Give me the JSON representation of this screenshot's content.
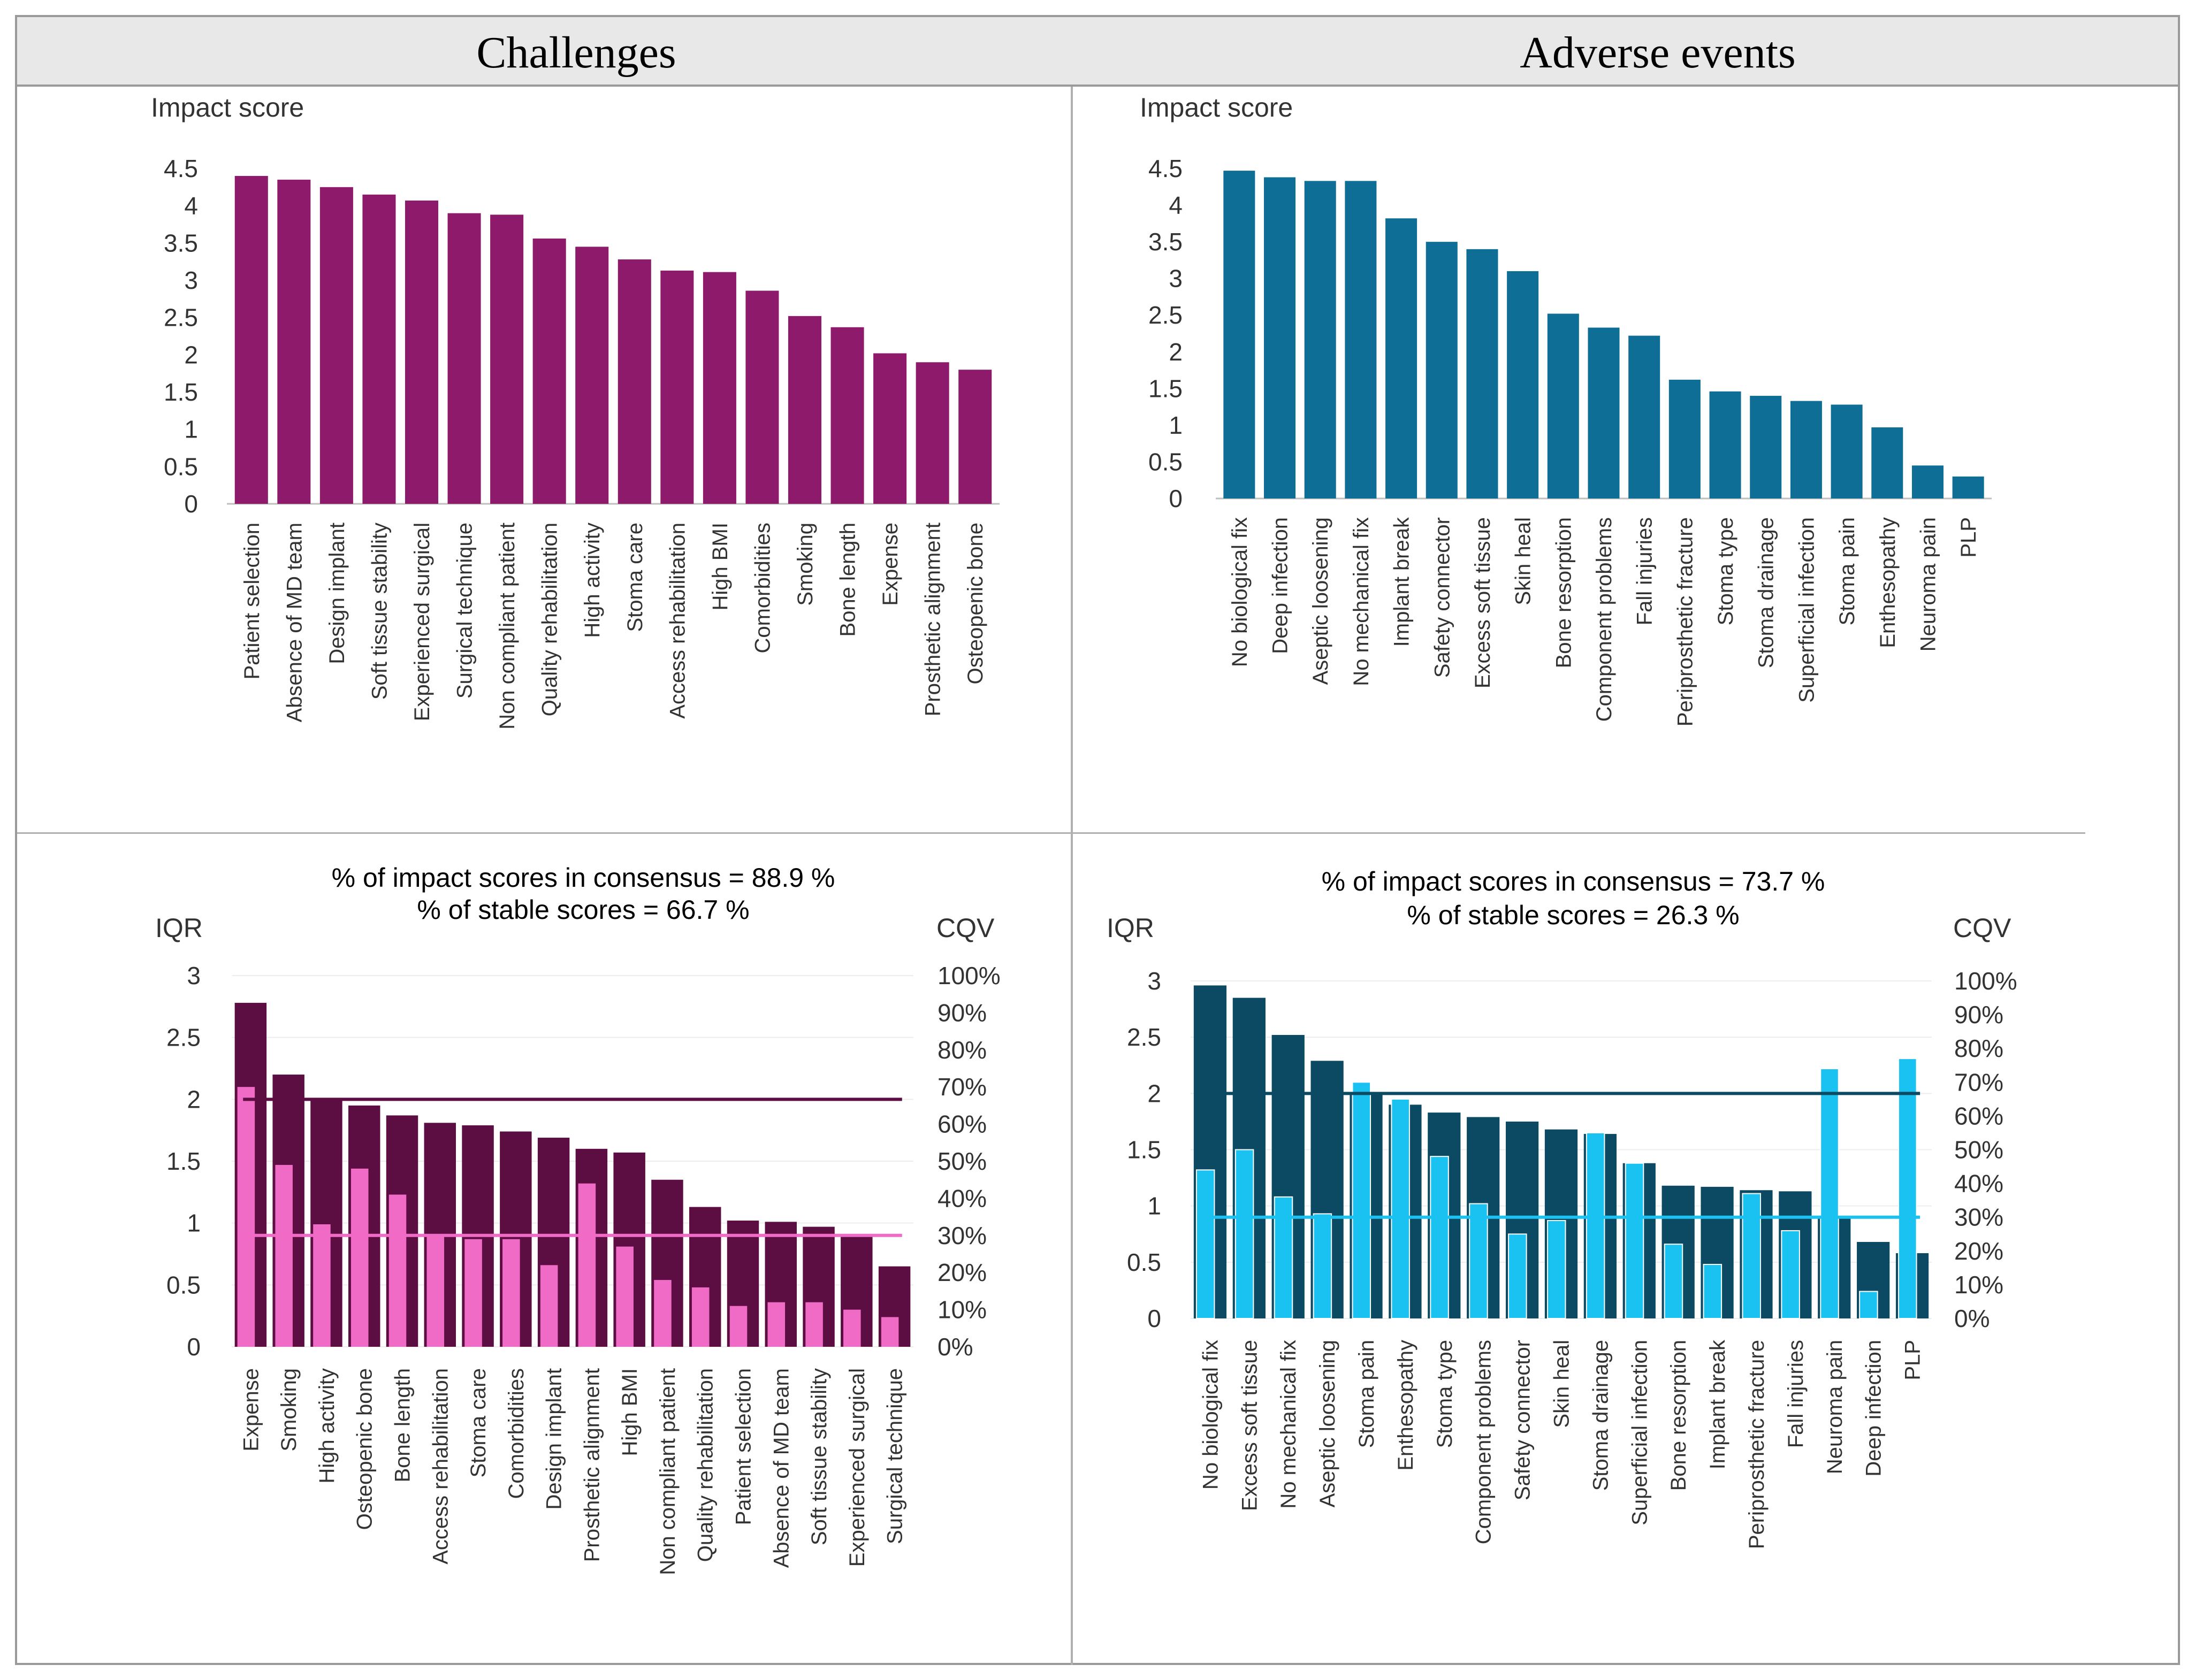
{
  "headers": {
    "left": "Challenges",
    "right": "Adverse events"
  },
  "chart_data": [
    {
      "id": "challenges_impact",
      "type": "bar",
      "ylabel": "Impact score",
      "ylim": [
        0,
        4.5
      ],
      "yticks": [
        "0",
        "0.5",
        "1",
        "1.5",
        "2",
        "2.5",
        "3",
        "3.5",
        "4",
        "4.5"
      ],
      "bar_color": "#8e1a6b",
      "categories": [
        "Patient selection",
        "Absence of MD team",
        "Design implant",
        "Soft tissue stability",
        "Experienced surgical",
        "Surgical technique",
        "Non compliant patient",
        "Quality rehabilitation",
        "High activity",
        "Stoma care",
        "Access rehabilitation",
        "High BMI",
        "Comorbidities",
        "Smoking",
        "Bone length",
        "Expense",
        "Prosthetic alignment",
        "Osteopenic bone"
      ],
      "values": [
        4.4,
        4.35,
        4.25,
        4.15,
        4.07,
        3.9,
        3.88,
        3.56,
        3.45,
        3.28,
        3.13,
        3.11,
        2.86,
        2.52,
        2.37,
        2.02,
        1.9,
        1.8
      ]
    },
    {
      "id": "adverse_impact",
      "type": "bar",
      "ylabel": "Impact score",
      "ylim": [
        0,
        4.5
      ],
      "yticks": [
        "0",
        "0.5",
        "1",
        "1.5",
        "2",
        "2.5",
        "3",
        "3.5",
        "4",
        "4.5"
      ],
      "bar_color": "#0f6e96",
      "categories": [
        "No biological fix",
        "Deep infection",
        "Aseptic loosening",
        "No mechanical fix",
        "Implant break",
        "Safety connector",
        "Excess soft tissue",
        "Skin heal",
        "Bone resorption",
        "Component problems",
        "Fall injuries",
        "Periprosthetic fracture",
        "Stoma type",
        "Stoma drainage",
        "Superficial infection",
        "Stoma pain",
        "Enthesopathy",
        "Neuroma pain",
        "PLP"
      ],
      "values": [
        4.47,
        4.38,
        4.33,
        4.33,
        3.82,
        3.5,
        3.4,
        3.1,
        2.52,
        2.33,
        2.22,
        1.62,
        1.46,
        1.4,
        1.33,
        1.28,
        0.97,
        0.45,
        0.3
      ]
    },
    {
      "id": "challenges_iqr_cqv",
      "type": "bar",
      "title": "% of impact scores in consensus = 88.9 %",
      "subtitle": "% of stable scores = 66.7 %",
      "ylabel": "IQR",
      "y2label": "CQV",
      "ylim": [
        0,
        3
      ],
      "y2lim": [
        0,
        100
      ],
      "yticks": [
        "0",
        "0.5",
        "1",
        "1.5",
        "2",
        "2.5",
        "3"
      ],
      "y2ticks": [
        "0%",
        "10%",
        "20%",
        "30%",
        "40%",
        "50%",
        "60%",
        "70%",
        "80%",
        "90%",
        "100%"
      ],
      "iqr_color": "#5c0d41",
      "cqv_color": "#f06bc6",
      "categories": [
        "Expense",
        "Smoking",
        "High activity",
        "Osteopenic bone",
        "Bone length",
        "Access rehabilitation",
        "Stoma care",
        "Comorbidities",
        "Design implant",
        "Prosthetic alignment",
        "High BMI",
        "Non compliant patient",
        "Quality rehabilitation",
        "Patient selection",
        "Absence of MD team",
        "Soft tissue stability",
        "Experienced surgical",
        "Surgical technique"
      ],
      "series": [
        {
          "name": "IQR",
          "axis": "left",
          "values": [
            2.78,
            2.2,
            2.0,
            1.95,
            1.87,
            1.81,
            1.79,
            1.74,
            1.69,
            1.6,
            1.57,
            1.35,
            1.13,
            1.02,
            1.01,
            0.97,
            0.91,
            0.65
          ]
        },
        {
          "name": "CQV",
          "axis": "right",
          "values": [
            70,
            49,
            33,
            48,
            41,
            30,
            29,
            29,
            22,
            44,
            27,
            18,
            16,
            11,
            12,
            12,
            10,
            8
          ]
        }
      ],
      "reference_lines": [
        {
          "axis": "left",
          "value": 2,
          "color": "#5c0d41"
        },
        {
          "axis": "right",
          "value": 30,
          "color": "#f06bc6"
        }
      ]
    },
    {
      "id": "adverse_iqr_cqv",
      "type": "bar",
      "title": "% of impact scores in consensus = 73.7 %",
      "subtitle": "% of stable scores = 26.3 %",
      "ylabel": "IQR",
      "y2label": "CQV",
      "ylim": [
        0,
        3
      ],
      "y2lim": [
        0,
        100
      ],
      "yticks": [
        "0",
        "0.5",
        "1",
        "1.5",
        "2",
        "2.5",
        "3"
      ],
      "y2ticks": [
        "0%",
        "10%",
        "20%",
        "30%",
        "40%",
        "50%",
        "60%",
        "70%",
        "80%",
        "90%",
        "100%"
      ],
      "iqr_color": "#0b4a62",
      "cqv_color": "#19c2f0",
      "categories": [
        "No biological fix",
        "Excess soft tissue",
        "No mechanical fix",
        "Aseptic loosening",
        "Stoma pain",
        "Enthesopathy",
        "Stoma type",
        "Component problems",
        "Safety connector",
        "Skin heal",
        "Stoma drainage",
        "Superficial infection",
        "Bone resorption",
        "Implant break",
        "Periprosthetic fracture",
        "Fall injuries",
        "Neuroma pain",
        "Deep infection",
        "PLP"
      ],
      "series": [
        {
          "name": "IQR",
          "axis": "left",
          "values": [
            2.96,
            2.85,
            2.52,
            2.29,
            2.0,
            1.9,
            1.83,
            1.79,
            1.75,
            1.68,
            1.64,
            1.38,
            1.18,
            1.17,
            1.14,
            1.13,
            0.9,
            0.68,
            0.58
          ]
        },
        {
          "name": "CQV",
          "axis": "right",
          "values": [
            44,
            50,
            36,
            31,
            70,
            65,
            48,
            34,
            25,
            29,
            55,
            46,
            22,
            16,
            37,
            26,
            74,
            8,
            77
          ]
        }
      ],
      "reference_lines": [
        {
          "axis": "left",
          "value": 2,
          "color": "#0b4a62"
        },
        {
          "axis": "right",
          "value": 30,
          "color": "#19c2f0"
        }
      ]
    }
  ]
}
